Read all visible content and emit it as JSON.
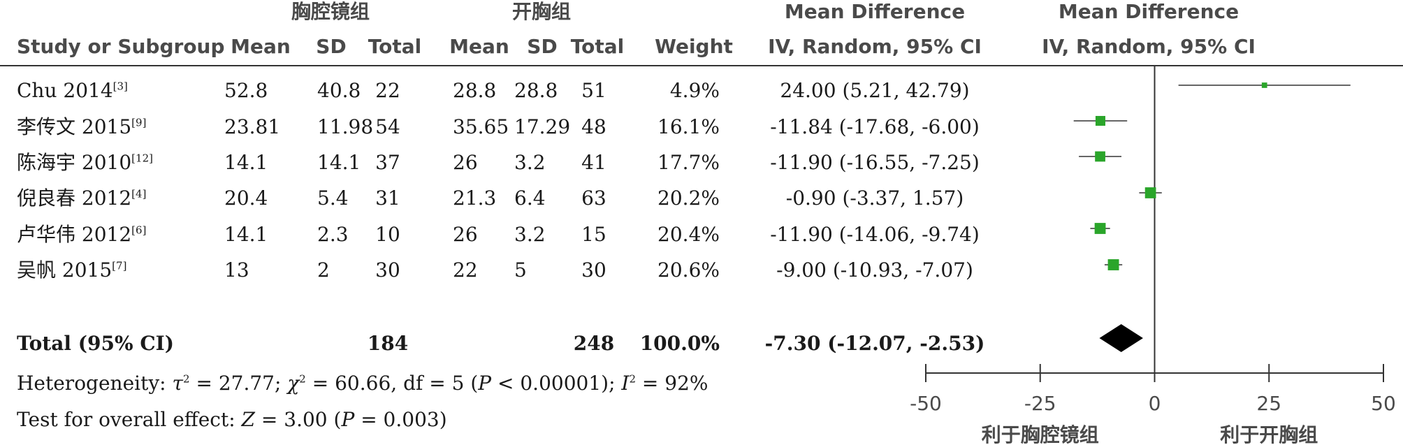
{
  "group_headers": {
    "experimental": "胸腔镜组",
    "control": "开胸组",
    "md_left": "Mean Difference",
    "md_right": "Mean Difference"
  },
  "col_headers": {
    "study": "Study or Subgroup",
    "mean1": "Mean",
    "sd1": "SD",
    "total1": "Total",
    "mean2": "Mean",
    "sd2": "SD",
    "total2": "Total",
    "weight": "Weight",
    "ci_left": "IV, Random, 95% CI",
    "ci_right": "IV, Random, 95% CI"
  },
  "studies": [
    {
      "name": "Chu 2014",
      "ref": "[3]",
      "m1": "52.8",
      "sd1": "40.8",
      "n1": "22",
      "m2": "28.8",
      "sd2": "28.8",
      "n2": "51",
      "weight": "4.9%",
      "ci": "24.00 (5.21, 42.79)"
    },
    {
      "name": "李传文 2015",
      "ref": "[9]",
      "m1": "23.81",
      "sd1": "11.98",
      "n1": "54",
      "m2": "35.65",
      "sd2": "17.29",
      "n2": "48",
      "weight": "16.1%",
      "ci": "-11.84 (-17.68, -6.00)"
    },
    {
      "name": "陈海宇 2010",
      "ref": "[12]",
      "m1": "14.1",
      "sd1": "14.1",
      "n1": "37",
      "m2": "26",
      "sd2": "3.2",
      "n2": "41",
      "weight": "17.7%",
      "ci": "-11.90 (-16.55, -7.25)"
    },
    {
      "name": "倪良春 2012",
      "ref": "[4]",
      "m1": "20.4",
      "sd1": "5.4",
      "n1": "31",
      "m2": "21.3",
      "sd2": "6.4",
      "n2": "63",
      "weight": "20.2%",
      "ci": "-0.90 (-3.37, 1.57)"
    },
    {
      "name": "卢华伟 2012",
      "ref": "[6]",
      "m1": "14.1",
      "sd1": "2.3",
      "n1": "10",
      "m2": "26",
      "sd2": "3.2",
      "n2": "15",
      "weight": "20.4%",
      "ci": "-11.90 (-14.06, -9.74)"
    },
    {
      "name": "吴帆 2015",
      "ref": "[7]",
      "m1": "13",
      "sd1": "2",
      "n1": "30",
      "m2": "22",
      "sd2": "5",
      "n2": "30",
      "weight": "20.6%",
      "ci": "-9.00 (-10.93, -7.07)"
    }
  ],
  "total": {
    "label": "Total (95% CI)",
    "n1": "184",
    "n2": "248",
    "weight": "100.0%",
    "ci": "-7.30 (-12.07, -2.53)"
  },
  "heterogeneity": {
    "prefix": "Heterogeneity: ",
    "tau_sym": "τ",
    "tau_val": " = 27.77; ",
    "chi_sym": "χ",
    "chi_val": " = 60.66, df = 5 (",
    "p_sym": "P",
    "p_val": " < 0.00001); ",
    "i_sym": "I",
    "i_val": " = 92%",
    "sq": "2"
  },
  "overall": {
    "prefix": "Test for overall effect: ",
    "z_sym": "Z",
    "z_val": " = 3.00 (",
    "p_sym": "P",
    "p_val": " = 0.003)"
  },
  "chart_data": {
    "type": "forest",
    "xlim": [
      -50,
      50
    ],
    "ticks": [
      -50,
      -25,
      0,
      25,
      50
    ],
    "tick_labels": [
      "-50",
      "-25",
      "0",
      "25",
      "50"
    ],
    "favours_left": "利于胸腔镜组",
    "favours_right": "利于开胸组",
    "points": [
      {
        "md": 24.0,
        "lo": 5.21,
        "hi": 42.79,
        "weight": 4.9
      },
      {
        "md": -11.84,
        "lo": -17.68,
        "hi": -6.0,
        "weight": 16.1
      },
      {
        "md": -11.9,
        "lo": -16.55,
        "hi": -7.25,
        "weight": 17.7
      },
      {
        "md": -0.9,
        "lo": -3.37,
        "hi": 1.57,
        "weight": 20.2
      },
      {
        "md": -11.9,
        "lo": -14.06,
        "hi": -9.74,
        "weight": 20.4
      },
      {
        "md": -9.0,
        "lo": -10.93,
        "hi": -7.07,
        "weight": 20.6
      }
    ],
    "pooled": {
      "md": -7.3,
      "lo": -12.07,
      "hi": -2.53
    },
    "marker_color": "#2aa52a"
  }
}
